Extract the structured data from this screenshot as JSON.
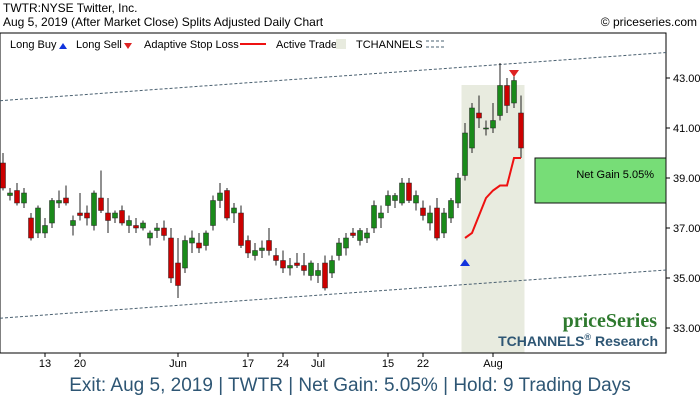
{
  "header": {
    "ticker_line": "TWTR:NYSE Twitter, Inc.",
    "subtitle": "Aug 5, 2019 (After Market Close)  Splits Adjusted Daily Chart",
    "copyright": "© priceseries.com"
  },
  "legend": {
    "long_buy": "Long Buy",
    "long_sell": "Long Sell",
    "adaptive_stop": "Adaptive Stop Loss",
    "active_trade": "Active Trade",
    "tchannels": "TCHANNELS"
  },
  "colors": {
    "up": "#1a8a1a",
    "down": "#cc0000",
    "stop": "#ee1111",
    "trade_shade": "#e8ebdf",
    "gain_box": "#77dd77",
    "channel": "#4a6070",
    "buy_arrow": "#1133dd",
    "sell_arrow": "#dd2222"
  },
  "annotations": {
    "net_gain_label": "Net Gain 5.05%"
  },
  "branding": {
    "name": "priceSeries",
    "research": "TCHANNELS",
    "research_reg": "®",
    "research_suffix": "Research"
  },
  "footer": {
    "text": "Exit: Aug 5, 2019 | TWTR | Net Gain: 5.05% | Hold: 9 Trading Days"
  },
  "chart_data": {
    "type": "candlestick",
    "y_ticks": [
      "33.00",
      "35.00",
      "37.00",
      "39.00",
      "41.00",
      "43.00"
    ],
    "ylim": [
      32.0,
      44.8
    ],
    "x_ticks": [
      {
        "label": "13",
        "index": 6
      },
      {
        "label": "20",
        "index": 11
      },
      {
        "label": "Jun",
        "index": 25
      },
      {
        "label": "17",
        "index": 35
      },
      {
        "label": "24",
        "index": 40
      },
      {
        "label": "Jul",
        "index": 45
      },
      {
        "label": "15",
        "index": 55
      },
      {
        "label": "22",
        "index": 60
      },
      {
        "label": "Aug",
        "index": 70
      }
    ],
    "candles": [
      {
        "o": 39.6,
        "h": 40.0,
        "l": 38.5,
        "c": 38.6
      },
      {
        "o": 38.3,
        "h": 38.6,
        "l": 38.1,
        "c": 38.4
      },
      {
        "o": 38.5,
        "h": 38.8,
        "l": 37.9,
        "c": 38.0
      },
      {
        "o": 38.0,
        "h": 38.6,
        "l": 37.8,
        "c": 38.4
      },
      {
        "o": 37.4,
        "h": 37.6,
        "l": 36.5,
        "c": 36.6
      },
      {
        "o": 36.8,
        "h": 37.9,
        "l": 36.6,
        "c": 37.8
      },
      {
        "o": 36.8,
        "h": 37.4,
        "l": 36.6,
        "c": 37.1
      },
      {
        "o": 37.2,
        "h": 38.2,
        "l": 37.0,
        "c": 38.1
      },
      {
        "o": 38.0,
        "h": 38.5,
        "l": 37.8,
        "c": 38.1
      },
      {
        "o": 38.2,
        "h": 38.7,
        "l": 37.9,
        "c": 38.0
      },
      {
        "o": 37.1,
        "h": 37.5,
        "l": 36.7,
        "c": 37.3
      },
      {
        "o": 37.6,
        "h": 38.4,
        "l": 37.3,
        "c": 37.5
      },
      {
        "o": 37.6,
        "h": 37.9,
        "l": 37.1,
        "c": 37.4
      },
      {
        "o": 37.1,
        "h": 38.5,
        "l": 36.9,
        "c": 38.4
      },
      {
        "o": 38.2,
        "h": 39.3,
        "l": 37.6,
        "c": 37.7
      },
      {
        "o": 37.6,
        "h": 38.2,
        "l": 36.8,
        "c": 37.3
      },
      {
        "o": 37.4,
        "h": 37.7,
        "l": 37.2,
        "c": 37.6
      },
      {
        "o": 37.7,
        "h": 37.9,
        "l": 37.1,
        "c": 37.2
      },
      {
        "o": 37.1,
        "h": 37.5,
        "l": 36.8,
        "c": 37.3
      },
      {
        "o": 37.1,
        "h": 37.4,
        "l": 36.8,
        "c": 37.0
      },
      {
        "o": 37.0,
        "h": 37.3,
        "l": 36.9,
        "c": 37.2
      },
      {
        "o": 36.6,
        "h": 36.9,
        "l": 36.3,
        "c": 36.8
      },
      {
        "o": 36.9,
        "h": 37.2,
        "l": 36.6,
        "c": 37.0
      },
      {
        "o": 37.0,
        "h": 37.3,
        "l": 36.5,
        "c": 36.7
      },
      {
        "o": 36.6,
        "h": 37.0,
        "l": 34.8,
        "c": 35.0
      },
      {
        "o": 35.6,
        "h": 36.6,
        "l": 34.2,
        "c": 34.7
      },
      {
        "o": 35.4,
        "h": 36.7,
        "l": 35.2,
        "c": 36.5
      },
      {
        "o": 36.4,
        "h": 36.9,
        "l": 36.0,
        "c": 36.6
      },
      {
        "o": 36.4,
        "h": 36.8,
        "l": 36.0,
        "c": 36.2
      },
      {
        "o": 36.3,
        "h": 36.9,
        "l": 36.1,
        "c": 36.8
      },
      {
        "o": 37.1,
        "h": 38.3,
        "l": 36.9,
        "c": 38.1
      },
      {
        "o": 38.1,
        "h": 38.8,
        "l": 37.8,
        "c": 38.4
      },
      {
        "o": 38.5,
        "h": 38.6,
        "l": 37.3,
        "c": 37.4
      },
      {
        "o": 37.6,
        "h": 38.0,
        "l": 37.2,
        "c": 37.8
      },
      {
        "o": 37.6,
        "h": 37.9,
        "l": 36.2,
        "c": 36.3
      },
      {
        "o": 36.5,
        "h": 36.7,
        "l": 35.8,
        "c": 36.0
      },
      {
        "o": 35.9,
        "h": 36.4,
        "l": 35.7,
        "c": 36.1
      },
      {
        "o": 36.1,
        "h": 36.5,
        "l": 35.8,
        "c": 36.2
      },
      {
        "o": 36.5,
        "h": 37.0,
        "l": 35.9,
        "c": 36.1
      },
      {
        "o": 35.9,
        "h": 36.2,
        "l": 35.5,
        "c": 35.7
      },
      {
        "o": 35.7,
        "h": 36.1,
        "l": 35.2,
        "c": 35.4
      },
      {
        "o": 35.4,
        "h": 35.8,
        "l": 35.1,
        "c": 35.5
      },
      {
        "o": 35.6,
        "h": 36.0,
        "l": 35.4,
        "c": 35.5
      },
      {
        "o": 35.5,
        "h": 36.0,
        "l": 35.1,
        "c": 35.3
      },
      {
        "o": 35.1,
        "h": 35.7,
        "l": 34.9,
        "c": 35.6
      },
      {
        "o": 35.1,
        "h": 35.6,
        "l": 34.8,
        "c": 35.3
      },
      {
        "o": 35.6,
        "h": 35.9,
        "l": 34.5,
        "c": 34.6
      },
      {
        "o": 35.2,
        "h": 35.9,
        "l": 35.0,
        "c": 35.7
      },
      {
        "o": 35.9,
        "h": 36.6,
        "l": 35.7,
        "c": 36.4
      },
      {
        "o": 36.2,
        "h": 36.8,
        "l": 35.9,
        "c": 36.6
      },
      {
        "o": 36.8,
        "h": 37.0,
        "l": 36.6,
        "c": 36.7
      },
      {
        "o": 36.5,
        "h": 37.0,
        "l": 36.3,
        "c": 36.9
      },
      {
        "o": 36.6,
        "h": 37.0,
        "l": 36.4,
        "c": 36.8
      },
      {
        "o": 37.0,
        "h": 38.1,
        "l": 36.8,
        "c": 37.9
      },
      {
        "o": 37.4,
        "h": 37.9,
        "l": 37.0,
        "c": 37.6
      },
      {
        "o": 37.9,
        "h": 38.5,
        "l": 37.6,
        "c": 38.3
      },
      {
        "o": 38.1,
        "h": 38.4,
        "l": 37.8,
        "c": 38.3
      },
      {
        "o": 38.0,
        "h": 39.0,
        "l": 37.9,
        "c": 38.8
      },
      {
        "o": 38.8,
        "h": 39.0,
        "l": 38.0,
        "c": 38.1
      },
      {
        "o": 38.0,
        "h": 38.5,
        "l": 37.7,
        "c": 38.3
      },
      {
        "o": 37.8,
        "h": 38.1,
        "l": 37.3,
        "c": 37.5
      },
      {
        "o": 37.2,
        "h": 37.9,
        "l": 36.9,
        "c": 37.6
      },
      {
        "o": 37.8,
        "h": 38.2,
        "l": 36.5,
        "c": 36.6
      },
      {
        "o": 36.8,
        "h": 37.8,
        "l": 36.6,
        "c": 37.6
      },
      {
        "o": 37.4,
        "h": 38.2,
        "l": 37.2,
        "c": 38.1
      },
      {
        "o": 38.0,
        "h": 39.2,
        "l": 37.8,
        "c": 39.0
      },
      {
        "o": 39.1,
        "h": 41.2,
        "l": 38.9,
        "c": 40.8
      },
      {
        "o": 40.2,
        "h": 42.0,
        "l": 40.0,
        "c": 41.8
      },
      {
        "o": 41.6,
        "h": 42.3,
        "l": 41.0,
        "c": 41.4
      },
      {
        "o": 41.0,
        "h": 41.3,
        "l": 40.7,
        "c": 41.0
      },
      {
        "o": 41.0,
        "h": 42.0,
        "l": 40.8,
        "c": 41.3
      },
      {
        "o": 41.5,
        "h": 43.6,
        "l": 41.3,
        "c": 42.7
      },
      {
        "o": 42.7,
        "h": 43.0,
        "l": 41.6,
        "c": 41.9
      },
      {
        "o": 42.0,
        "h": 43.3,
        "l": 41.8,
        "c": 42.9
      },
      {
        "o": 41.6,
        "h": 42.3,
        "l": 39.8,
        "c": 40.2
      }
    ],
    "trade": {
      "start_index": 66,
      "end_index": 74,
      "entry": 38.2,
      "exit": 40.2,
      "net_gain_pct": 5.05
    },
    "stop_loss": [
      {
        "index": 66,
        "value": 36.6
      },
      {
        "index": 67,
        "value": 36.8
      },
      {
        "index": 68,
        "value": 37.5
      },
      {
        "index": 69,
        "value": 38.2
      },
      {
        "index": 70,
        "value": 38.5
      },
      {
        "index": 71,
        "value": 38.7
      },
      {
        "index": 72,
        "value": 38.7
      },
      {
        "index": 73,
        "value": 39.8
      },
      {
        "index": 74,
        "value": 39.8
      }
    ],
    "channel_upper": {
      "start": [
        0,
        42.1
      ],
      "end": [
        74,
        43.6
      ]
    },
    "channel_lower": {
      "start": [
        0,
        33.4
      ],
      "end": [
        74,
        34.9
      ]
    },
    "gain_box": {
      "low": 38.0,
      "high": 39.8
    },
    "buy_signal": {
      "index": 66,
      "value": 35.6
    },
    "sell_signal": {
      "index": 73,
      "value": 43.2
    }
  }
}
